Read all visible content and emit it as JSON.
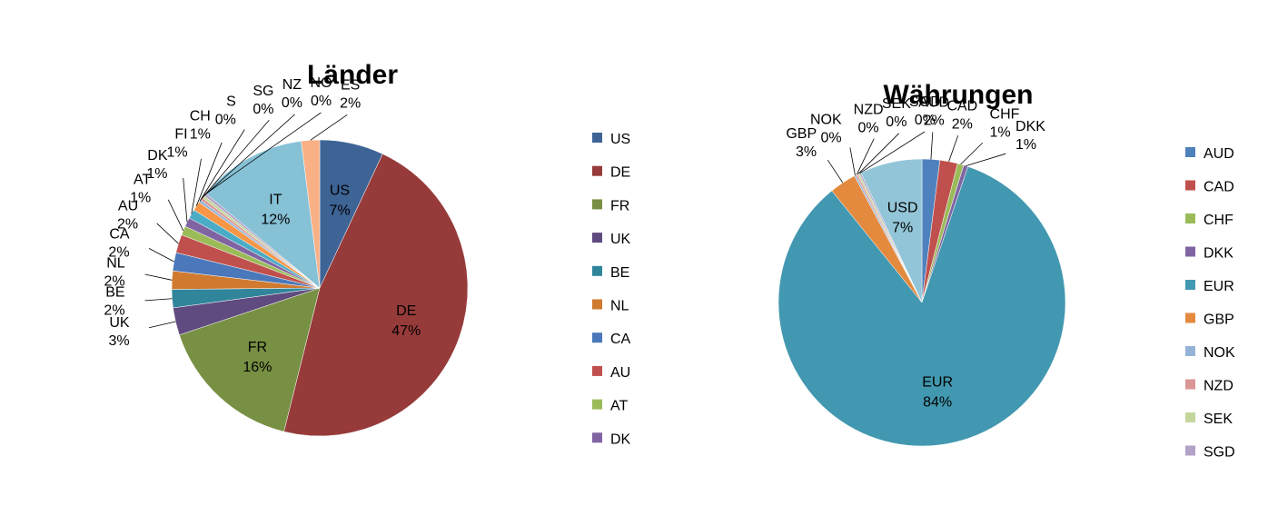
{
  "chart_data": [
    {
      "type": "pie",
      "title": "Länder",
      "categories": [
        "US",
        "DE",
        "FR",
        "UK",
        "BE",
        "NL",
        "CA",
        "AU",
        "AT",
        "DK",
        "FI",
        "CH",
        "S",
        "SG",
        "NZ",
        "NO",
        "IT",
        "ES"
      ],
      "values": [
        7,
        47,
        16,
        3,
        2,
        2,
        2,
        2,
        1,
        1,
        1,
        1,
        0.3,
        0.3,
        0.3,
        0.3,
        12,
        2
      ],
      "value_labels": [
        "7%",
        "47%",
        "16%",
        "3%",
        "2%",
        "2%",
        "2%",
        "2%",
        "1%",
        "1%",
        "1%",
        "1%",
        "0%",
        "0%",
        "0%",
        "0%",
        "12%",
        "2%"
      ],
      "colors": [
        "#3E6496",
        "#963B3A",
        "#779043",
        "#5F4B7F",
        "#31859B",
        "#D07A30",
        "#4A78BA",
        "#C0504D",
        "#9BBB59",
        "#8064A2",
        "#4BACC6",
        "#F79646",
        "#95B3D7",
        "#DA9694",
        "#C3D69B",
        "#B3A2C7",
        "#86C1D6",
        "#FAB085"
      ],
      "legend": true
    },
    {
      "type": "pie",
      "title": "Währungen",
      "categories": [
        "AUD",
        "CAD",
        "CHF",
        "DKK",
        "EUR",
        "GBP",
        "NOK",
        "NZD",
        "SEK",
        "SGD",
        "USD"
      ],
      "values": [
        2,
        2,
        0.7,
        0.5,
        84,
        3,
        0.2,
        0.2,
        0.2,
        0.2,
        7
      ],
      "value_labels": [
        "2%",
        "2%",
        "1%",
        "1%",
        "84%",
        "3%",
        "0%",
        "0%",
        "0%",
        "0%",
        "7%"
      ],
      "colors": [
        "#4F81BD",
        "#C0504D",
        "#9BBB59",
        "#8064A2",
        "#4298B0",
        "#E38A3F",
        "#95B3D7",
        "#DA9694",
        "#C3D69B",
        "#B3A2C7",
        "#93C5D8"
      ],
      "legend": true
    }
  ]
}
